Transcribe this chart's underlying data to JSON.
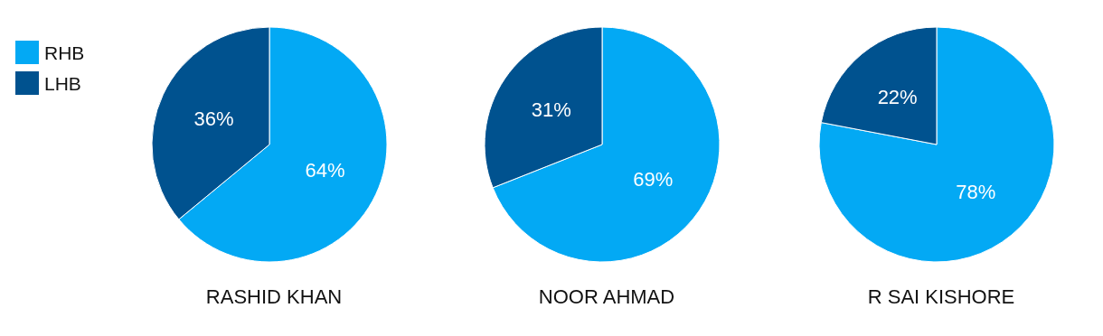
{
  "chart_data": [
    {
      "type": "pie",
      "title": "RASHID KHAN",
      "categories": [
        "RHB",
        "LHB"
      ],
      "values": [
        64,
        36
      ],
      "colors": [
        "#03a9f4",
        "#00528f"
      ],
      "value_labels": [
        "64%",
        "36%"
      ],
      "legend": "top left"
    },
    {
      "type": "pie",
      "title": "NOOR AHMAD",
      "categories": [
        null,
        null
      ],
      "values": [
        69,
        31
      ],
      "colors": [
        "#03a9f4",
        "#00528f"
      ],
      "value_labels": [
        "69%",
        "31%"
      ],
      "legend": false
    },
    {
      "type": "pie",
      "title": "R SAI KISHORE",
      "categories": [
        null,
        null
      ],
      "values": [
        78,
        22
      ],
      "colors": [
        "#03a9f4",
        "#00528f"
      ],
      "value_labels": [
        "78%",
        "22%"
      ],
      "legend": false
    }
  ]
}
